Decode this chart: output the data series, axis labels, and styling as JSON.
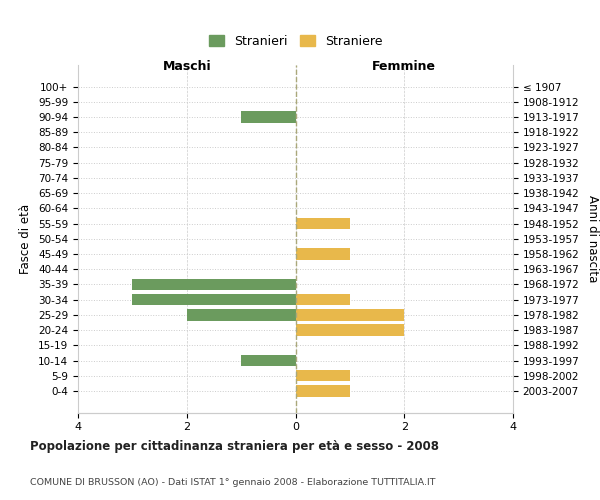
{
  "age_groups": [
    "100+",
    "95-99",
    "90-94",
    "85-89",
    "80-84",
    "75-79",
    "70-74",
    "65-69",
    "60-64",
    "55-59",
    "50-54",
    "45-49",
    "40-44",
    "35-39",
    "30-34",
    "25-29",
    "20-24",
    "15-19",
    "10-14",
    "5-9",
    "0-4"
  ],
  "birth_years": [
    "≤ 1907",
    "1908-1912",
    "1913-1917",
    "1918-1922",
    "1923-1927",
    "1928-1932",
    "1933-1937",
    "1938-1942",
    "1943-1947",
    "1948-1952",
    "1953-1957",
    "1958-1962",
    "1963-1967",
    "1968-1972",
    "1973-1977",
    "1978-1982",
    "1983-1987",
    "1988-1992",
    "1993-1997",
    "1998-2002",
    "2003-2007"
  ],
  "maschi": [
    0,
    0,
    -1,
    0,
    0,
    0,
    0,
    0,
    0,
    0,
    0,
    0,
    0,
    -3,
    -3,
    -2,
    0,
    0,
    -1,
    0,
    0
  ],
  "femmine": [
    0,
    0,
    0,
    0,
    0,
    0,
    0,
    0,
    0,
    1,
    0,
    1,
    0,
    0,
    1,
    2,
    2,
    0,
    0,
    1,
    1
  ],
  "color_maschi": "#6b9b5e",
  "color_femmine": "#e8b84b",
  "title": "Popolazione per cittadinanza straniera per età e sesso - 2008",
  "subtitle": "COMUNE DI BRUSSON (AO) - Dati ISTAT 1° gennaio 2008 - Elaborazione TUTTITALIA.IT",
  "label_maschi": "Maschi",
  "label_femmine": "Femmine",
  "legend_stranieri": "Stranieri",
  "legend_straniere": "Straniere",
  "ylabel_left": "Fasce di età",
  "ylabel_right": "Anni di nascita",
  "xlim": [
    -4,
    4
  ],
  "bg_color": "#ffffff",
  "grid_color": "#cccccc",
  "bar_height": 0.75
}
